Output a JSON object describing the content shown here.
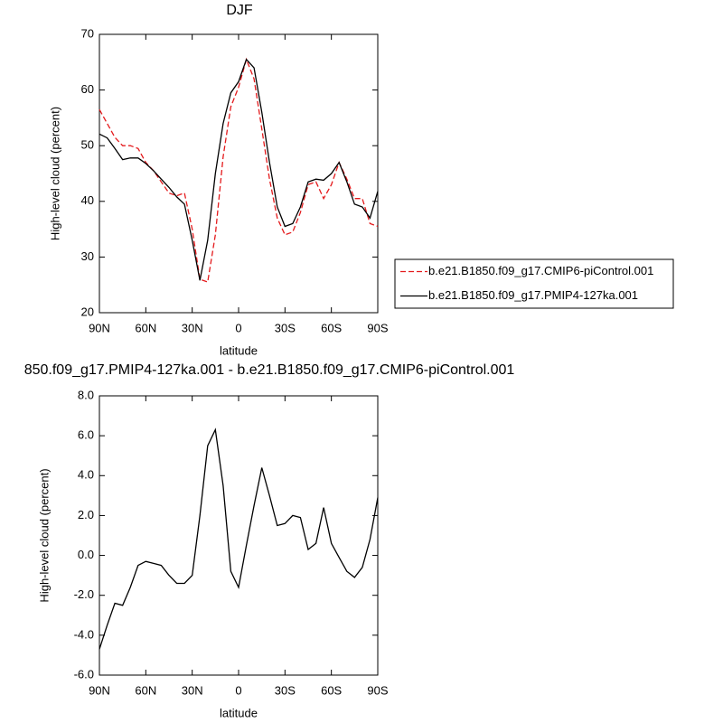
{
  "chart_data": [
    {
      "type": "line",
      "title": "DJF",
      "xlabel": "latitude",
      "ylabel": "High-level cloud (percent)",
      "x": [
        90,
        85,
        80,
        75,
        70,
        65,
        60,
        55,
        50,
        45,
        40,
        35,
        30,
        25,
        20,
        15,
        10,
        5,
        0,
        -5,
        -10,
        -15,
        -20,
        -25,
        -30,
        -35,
        -40,
        -45,
        -50,
        -55,
        -60,
        -65,
        -70,
        -75,
        -80,
        -85,
        -90
      ],
      "xlim": [
        90,
        -90
      ],
      "xticks": [
        {
          "value": 90,
          "label": "90N"
        },
        {
          "value": 60,
          "label": "60N"
        },
        {
          "value": 30,
          "label": "30N"
        },
        0,
        {
          "value": -30,
          "label": "30S"
        },
        {
          "value": -60,
          "label": "60S"
        },
        {
          "value": -90,
          "label": "90S"
        }
      ],
      "ylim": [
        20,
        70
      ],
      "yticks": [
        20,
        30,
        40,
        50,
        60,
        70
      ],
      "series": [
        {
          "name": "b.e21.B1850.f09_g17.CMIP6-piControl.001",
          "color": "#e41a1c",
          "line_style": "dashed",
          "values": [
            56.5,
            54,
            51.5,
            50,
            50,
            49.5,
            47,
            45.5,
            43.5,
            41.5,
            41,
            41.5,
            35,
            26,
            25.5,
            34,
            48,
            57,
            60.5,
            65.5,
            62,
            53,
            44,
            37,
            34,
            34.5,
            38,
            43,
            43.5,
            40.5,
            43,
            47,
            44,
            40.5,
            40.5,
            36,
            35.5
          ]
        },
        {
          "name": "b.e21.B1850.f09_g17.PMIP4-127ka.001",
          "color": "#000000",
          "line_style": "solid",
          "values": [
            52.1,
            51.4,
            49.5,
            47.5,
            47.8,
            47.8,
            46.8,
            45.5,
            44,
            42.5,
            40.8,
            39.5,
            33,
            25.8,
            33,
            45,
            54,
            59.5,
            61.5,
            65.5,
            64,
            56,
            47,
            39,
            35.5,
            36,
            39,
            43.5,
            44,
            43.8,
            45,
            47,
            43.5,
            39.5,
            39,
            37,
            41.8
          ]
        }
      ]
    },
    {
      "type": "line",
      "title": "850.f09_g17.PMIP4-127ka.001 - b.e21.B1850.f09_g17.CMIP6-piControl.001",
      "xlabel": "latitude",
      "ylabel": "High-level cloud (percent)",
      "x": [
        90,
        85,
        80,
        75,
        70,
        65,
        60,
        55,
        50,
        45,
        40,
        35,
        30,
        25,
        20,
        15,
        10,
        5,
        0,
        -5,
        -10,
        -15,
        -20,
        -25,
        -30,
        -35,
        -40,
        -45,
        -50,
        -55,
        -60,
        -65,
        -70,
        -75,
        -80,
        -85,
        -90
      ],
      "xlim": [
        90,
        -90
      ],
      "xticks": [
        {
          "value": 90,
          "label": "90N"
        },
        {
          "value": 60,
          "label": "60N"
        },
        {
          "value": 30,
          "label": "30N"
        },
        0,
        {
          "value": -30,
          "label": "30S"
        },
        {
          "value": -60,
          "label": "60S"
        },
        {
          "value": -90,
          "label": "90S"
        }
      ],
      "ylim": [
        -6,
        8
      ],
      "yticks": [
        {
          "value": -6,
          "label": "-6.0"
        },
        {
          "value": -4,
          "label": "-4.0"
        },
        {
          "value": -2,
          "label": "-2.0"
        },
        {
          "value": 0,
          "label": "0.0"
        },
        {
          "value": 2,
          "label": "2.0"
        },
        {
          "value": 4,
          "label": "4.0"
        },
        {
          "value": 6,
          "label": "6.0"
        },
        {
          "value": 8,
          "label": "8.0"
        }
      ],
      "series": [
        {
          "color": "#000000",
          "line_style": "solid",
          "values": [
            -4.7,
            -3.5,
            -2.4,
            -2.5,
            -1.6,
            -0.5,
            -0.3,
            -0.4,
            -0.5,
            -1.0,
            -1.4,
            -1.4,
            -1.0,
            2.0,
            5.5,
            6.3,
            3.5,
            -0.8,
            -1.6,
            0.5,
            2.5,
            4.4,
            3.0,
            1.5,
            1.6,
            2.0,
            1.9,
            0.3,
            0.6,
            2.4,
            0.6,
            -0.1,
            -0.8,
            -1.1,
            -0.6,
            0.8,
            2.9
          ]
        }
      ]
    }
  ]
}
